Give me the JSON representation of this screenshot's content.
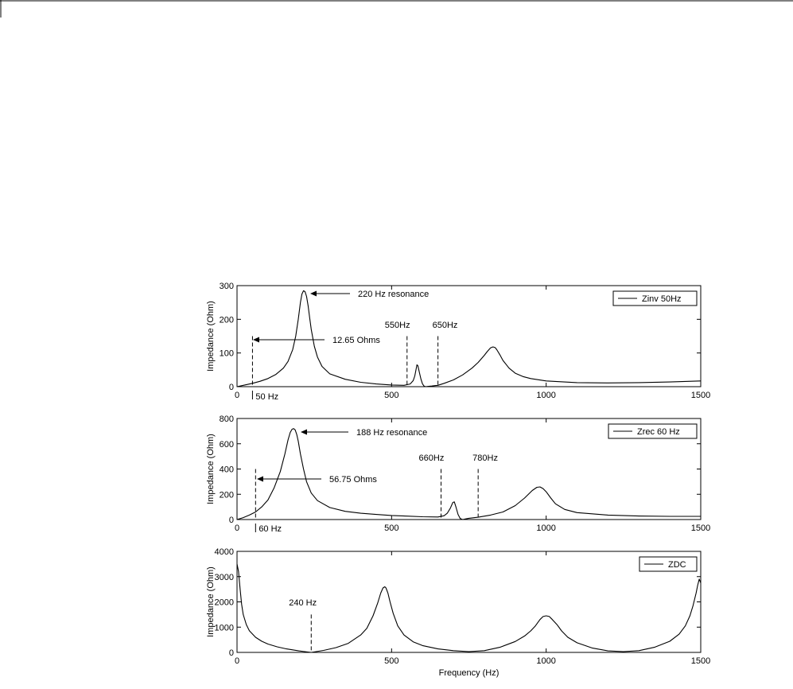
{
  "chart_data": [
    {
      "type": "line",
      "title": "",
      "xlabel": "",
      "ylabel": "Impedance (Ohm)",
      "xlim": [
        0,
        1500
      ],
      "ylim": [
        0,
        300
      ],
      "xticks": [
        "0",
        "500",
        "1000",
        "1500"
      ],
      "yticks": [
        "0",
        "100",
        "200",
        "300"
      ],
      "grid": false,
      "legend_position": "top-right",
      "series": [
        {
          "name": "Zinv 50Hz",
          "x": [
            0,
            25,
            50,
            75,
            100,
            125,
            150,
            165,
            180,
            190,
            198,
            205,
            210,
            215,
            220,
            225,
            230,
            235,
            240,
            250,
            260,
            275,
            300,
            350,
            400,
            450,
            500,
            540,
            560,
            570,
            575,
            580,
            582,
            585,
            590,
            595,
            600,
            605,
            610,
            620,
            630,
            640,
            650,
            670,
            700,
            730,
            760,
            780,
            800,
            810,
            820,
            828,
            835,
            840,
            850,
            860,
            880,
            900,
            925,
            950,
            1000,
            1100,
            1200,
            1300,
            1400,
            1500
          ],
          "y": [
            0,
            5,
            10,
            16,
            24,
            36,
            55,
            75,
            110,
            150,
            200,
            250,
            275,
            285,
            282,
            268,
            240,
            205,
            170,
            120,
            88,
            60,
            38,
            22,
            13,
            8,
            5,
            4,
            8,
            18,
            32,
            55,
            65,
            62,
            42,
            22,
            8,
            2,
            0,
            1,
            2,
            3,
            4,
            10,
            20,
            35,
            55,
            72,
            93,
            105,
            115,
            118,
            116,
            110,
            95,
            78,
            55,
            40,
            30,
            24,
            17,
            12,
            11,
            12,
            14,
            17
          ]
        }
      ],
      "annotations": [
        "220 Hz resonance",
        "12.65 Ohms",
        "550Hz",
        "650Hz",
        "50 Hz"
      ],
      "markers": [
        {
          "x": 50,
          "y": 150,
          "text": "50 Hz"
        },
        {
          "x": 550,
          "y": 150,
          "text": "550Hz"
        },
        {
          "x": 650,
          "y": 150,
          "text": "650Hz"
        }
      ]
    },
    {
      "type": "line",
      "title": "",
      "xlabel": "",
      "ylabel": "Impedance (Ohm)",
      "xlim": [
        0,
        1500
      ],
      "ylim": [
        0,
        800
      ],
      "xticks": [
        "0",
        "500",
        "1000",
        "1500"
      ],
      "yticks": [
        "0",
        "200",
        "400",
        "600",
        "800"
      ],
      "grid": false,
      "legend_position": "top-right",
      "series": [
        {
          "name": "Zrec 60 Hz",
          "x": [
            0,
            20,
            40,
            60,
            80,
            100,
            120,
            140,
            155,
            165,
            172,
            178,
            183,
            188,
            193,
            198,
            205,
            215,
            225,
            240,
            260,
            300,
            350,
            400,
            450,
            500,
            550,
            600,
            650,
            670,
            680,
            690,
            698,
            703,
            708,
            715,
            722,
            730,
            740,
            750,
            780,
            820,
            860,
            900,
            930,
            955,
            970,
            980,
            990,
            1000,
            1015,
            1030,
            1060,
            1100,
            1200,
            1300,
            1400,
            1500
          ],
          "y": [
            0,
            15,
            35,
            60,
            100,
            155,
            250,
            380,
            520,
            630,
            690,
            715,
            720,
            710,
            675,
            620,
            520,
            400,
            300,
            210,
            150,
            95,
            65,
            50,
            40,
            32,
            27,
            22,
            20,
            30,
            50,
            90,
            135,
            140,
            100,
            40,
            8,
            0,
            5,
            10,
            18,
            35,
            60,
            110,
            170,
            230,
            255,
            258,
            245,
            220,
            170,
            125,
            80,
            55,
            35,
            28,
            25,
            25
          ]
        }
      ],
      "annotations": [
        "188 Hz resonance",
        "56.75 Ohms",
        "660Hz",
        "780Hz",
        "60 Hz"
      ],
      "markers": [
        {
          "x": 60,
          "y": 400,
          "text": "60 Hz"
        },
        {
          "x": 660,
          "y": 400,
          "text": "660Hz"
        },
        {
          "x": 780,
          "y": 400,
          "text": "780Hz"
        }
      ]
    },
    {
      "type": "line",
      "title": "",
      "xlabel": "Frequency (Hz)",
      "ylabel": "Impedance (Ohm)",
      "xlim": [
        0,
        1500
      ],
      "ylim": [
        0,
        4000
      ],
      "xticks": [
        "0",
        "500",
        "1000",
        "1500"
      ],
      "yticks": [
        "0",
        "1000",
        "2000",
        "3000",
        "4000"
      ],
      "grid": false,
      "legend_position": "top-right",
      "series": [
        {
          "name": "ZDC",
          "x": [
            0,
            5,
            10,
            15,
            20,
            30,
            40,
            60,
            80,
            100,
            130,
            160,
            200,
            240,
            280,
            320,
            360,
            400,
            420,
            440,
            455,
            465,
            472,
            478,
            482,
            488,
            495,
            505,
            520,
            540,
            570,
            600,
            650,
            700,
            750,
            800,
            850,
            900,
            930,
            950,
            965,
            980,
            990,
            1000,
            1010,
            1020,
            1035,
            1050,
            1070,
            1100,
            1150,
            1200,
            1250,
            1300,
            1350,
            1400,
            1430,
            1450,
            1465,
            1475,
            1485,
            1490,
            1495,
            1500
          ],
          "y": [
            3500,
            3200,
            2500,
            1900,
            1500,
            1100,
            860,
            600,
            440,
            330,
            220,
            140,
            60,
            0,
            80,
            190,
            360,
            690,
            950,
            1450,
            1950,
            2350,
            2550,
            2600,
            2550,
            2350,
            2000,
            1550,
            1050,
            690,
            420,
            270,
            140,
            70,
            30,
            70,
            200,
            430,
            650,
            850,
            1050,
            1300,
            1420,
            1450,
            1420,
            1300,
            1100,
            850,
            600,
            380,
            170,
            60,
            30,
            70,
            200,
            440,
            720,
            1050,
            1450,
            1850,
            2350,
            2650,
            2900,
            2750
          ]
        }
      ],
      "annotations": [
        "240 Hz"
      ],
      "markers": [
        {
          "x": 240,
          "y": 1500,
          "text": "240 Hz"
        }
      ]
    }
  ]
}
